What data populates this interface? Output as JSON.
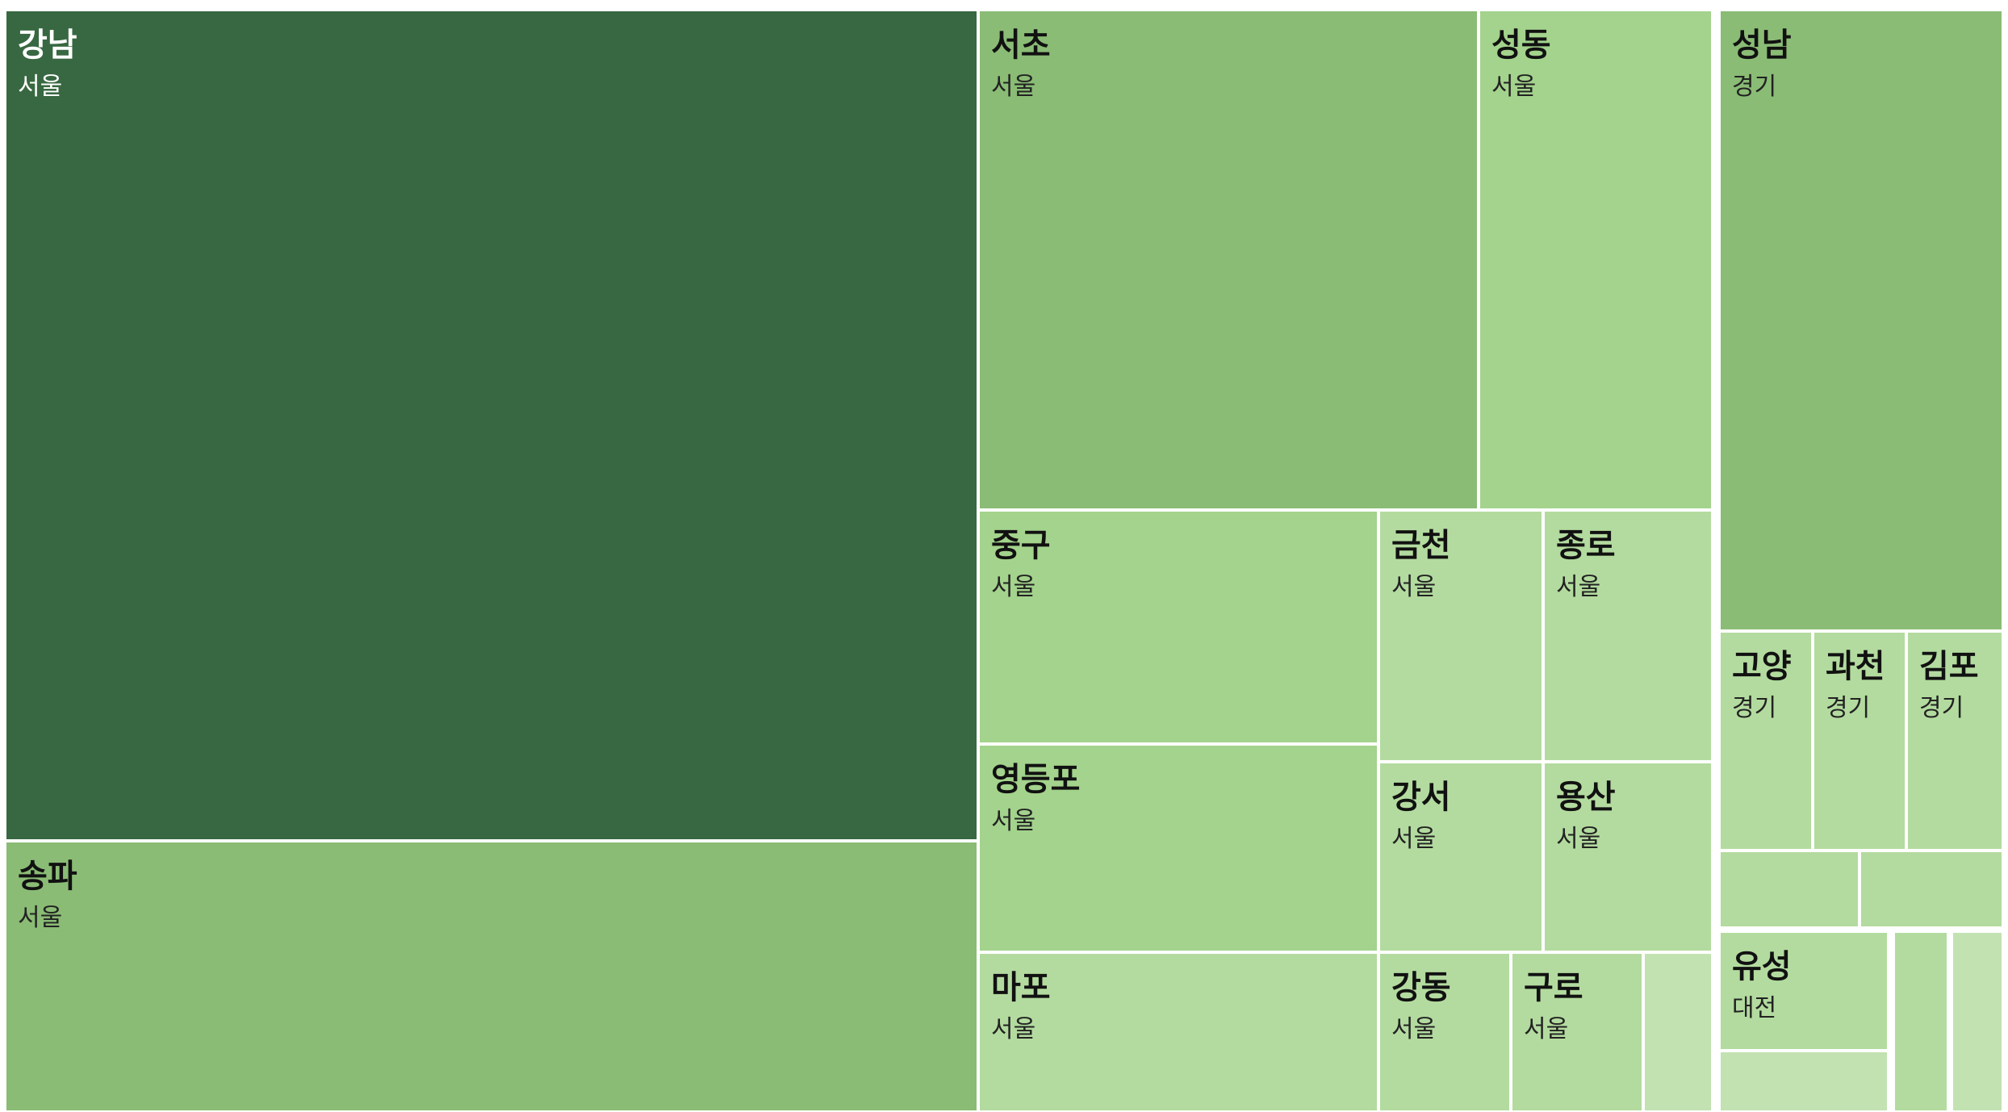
{
  "chart_data": {
    "type": "treemap",
    "tiles": [
      {
        "name": "강남",
        "region": "서울",
        "value": 160
      },
      {
        "name": "송파",
        "region": "서울",
        "value": 45
      },
      {
        "name": "서초",
        "region": "서울",
        "value": 57
      },
      {
        "name": "성동",
        "region": "서울",
        "value": 27
      },
      {
        "name": "중구",
        "region": "서울",
        "value": 16
      },
      {
        "name": "영등포",
        "region": "서울",
        "value": 14
      },
      {
        "name": "마포",
        "region": "서울",
        "value": 10
      },
      {
        "name": "금천",
        "region": "서울",
        "value": 8.5
      },
      {
        "name": "종로",
        "region": "서울",
        "value": 8.5
      },
      {
        "name": "강서",
        "region": "서울",
        "value": 6.6
      },
      {
        "name": "용산",
        "region": "서울",
        "value": 6.6
      },
      {
        "name": "강동",
        "region": "서울",
        "value": 4.3
      },
      {
        "name": "구로",
        "region": "서울",
        "value": 4.3
      },
      {
        "name": "",
        "region": "서울",
        "value": 2.7
      },
      {
        "name": "성남",
        "region": "경기",
        "value": 40
      },
      {
        "name": "고양",
        "region": "경기",
        "value": 6.5
      },
      {
        "name": "과천",
        "region": "경기",
        "value": 6.5
      },
      {
        "name": "김포",
        "region": "경기",
        "value": 6.5
      },
      {
        "name": "",
        "region": "경기",
        "value": 2.8
      },
      {
        "name": "",
        "region": "경기",
        "value": 2.8
      },
      {
        "name": "유성",
        "region": "대전",
        "value": 5.4
      },
      {
        "name": "",
        "region": "대전",
        "value": 2.3
      },
      {
        "name": "",
        "region": "대전",
        "value": 1.9
      },
      {
        "name": "",
        "region": "대전",
        "value": 2.3
      }
    ],
    "colors": {
      "darkest": "#386841",
      "dark": "#8abc75",
      "medium": "#a3d38c",
      "light": "#b3db9f",
      "lightest": "#c2e2b2"
    }
  }
}
